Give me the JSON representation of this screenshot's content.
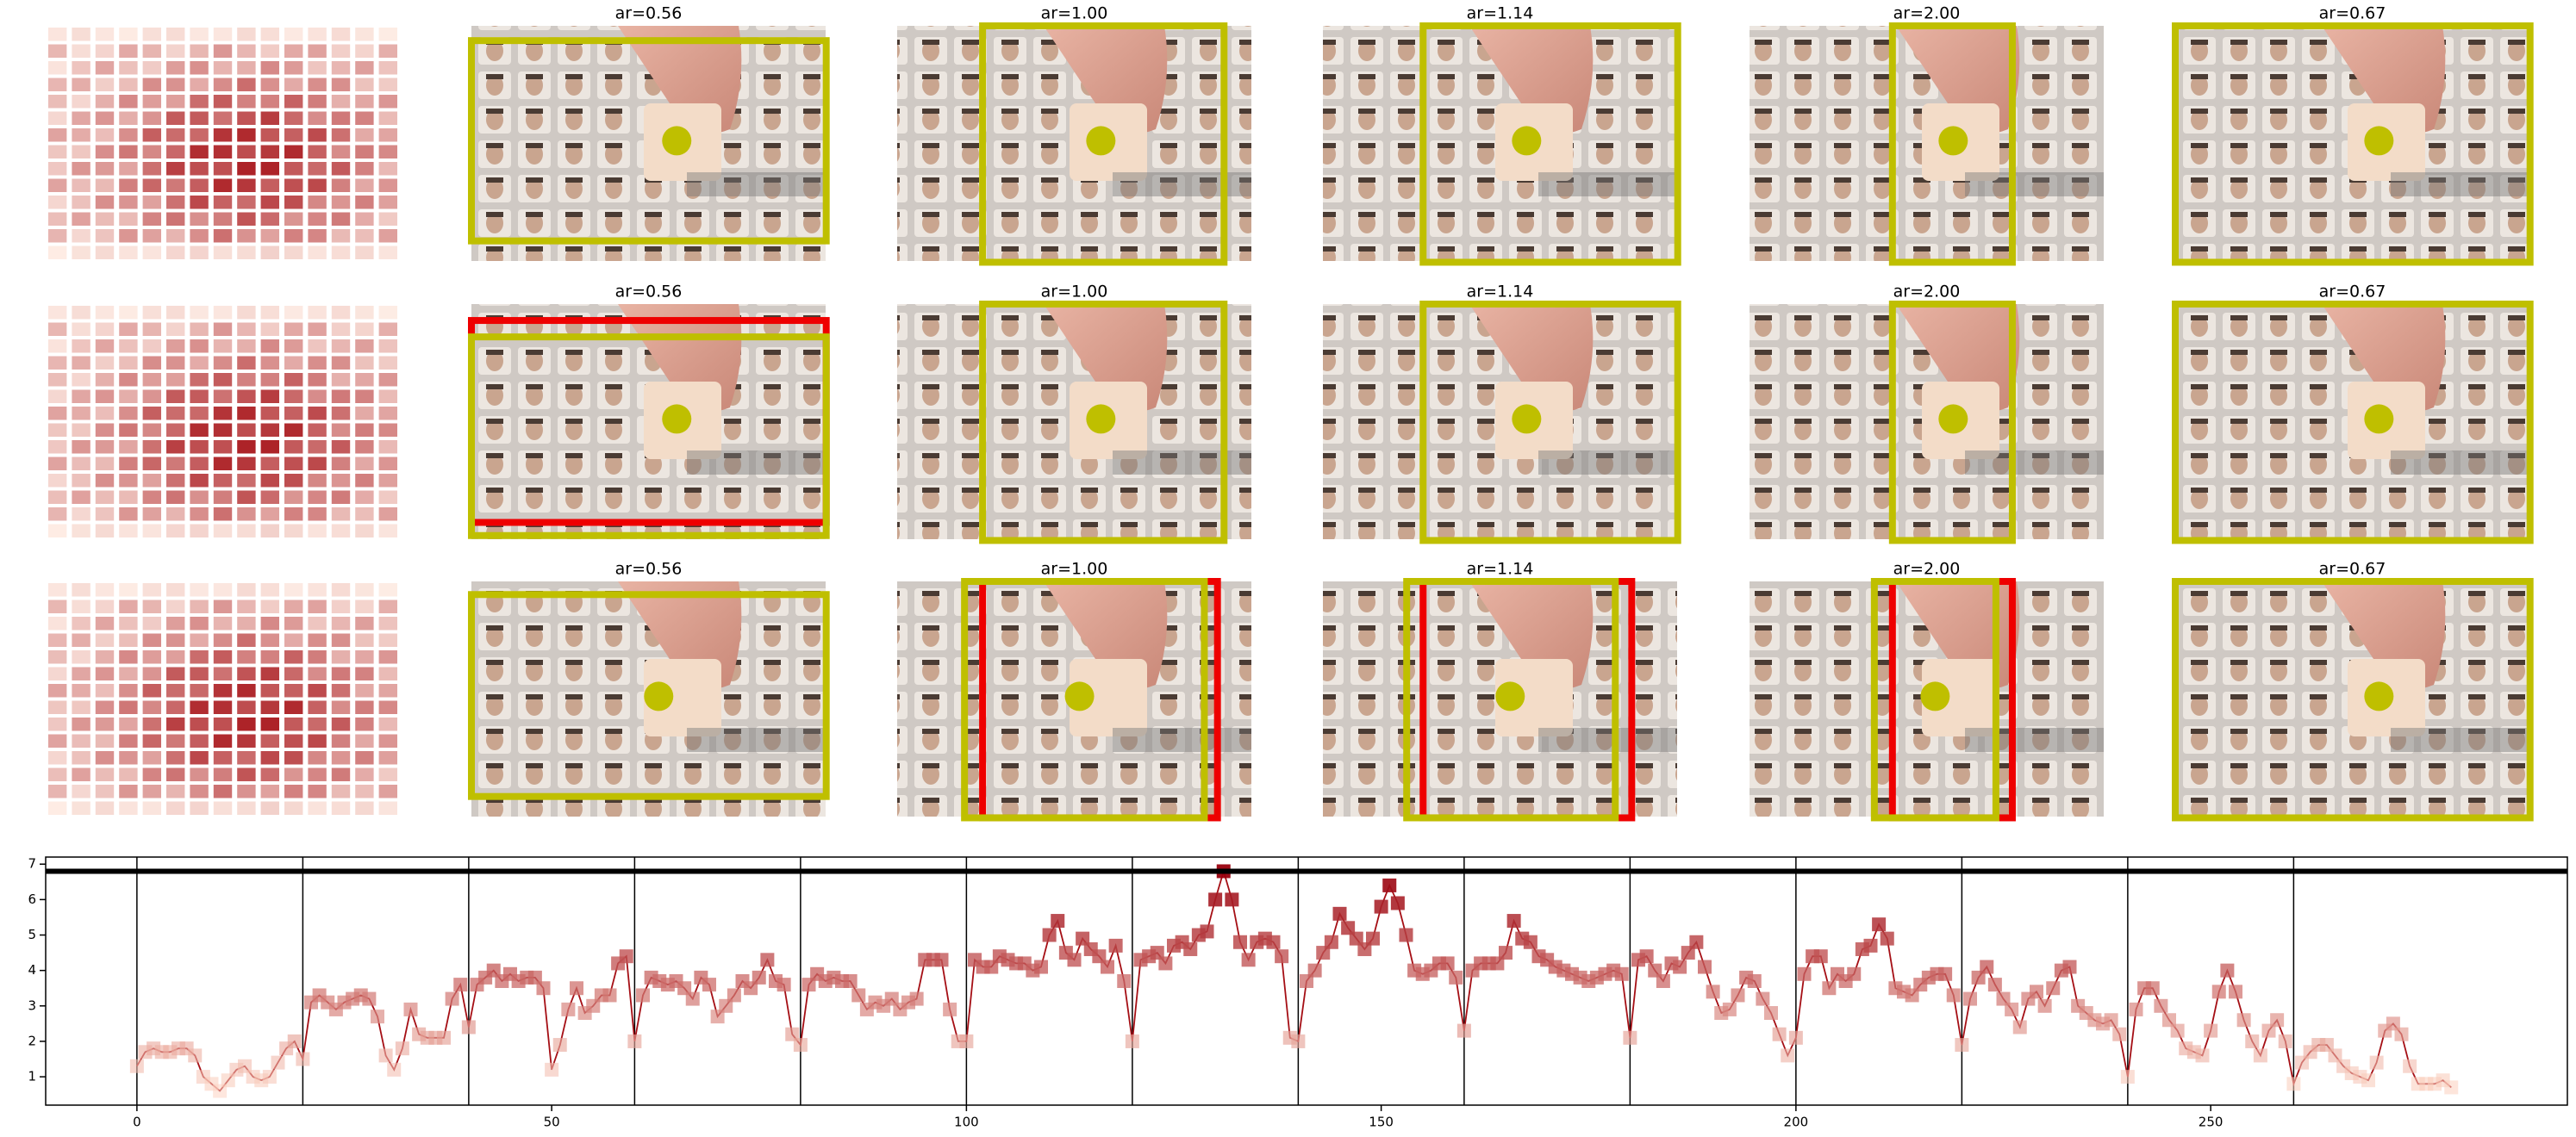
{
  "panels": {
    "rows": [
      {
        "titles": [
          "ar=0.56",
          "ar=1.00",
          "ar=1.14",
          "ar=2.00",
          "ar=0.67"
        ]
      },
      {
        "titles": [
          "ar=0.56",
          "ar=1.00",
          "ar=1.14",
          "ar=2.00",
          "ar=0.67"
        ]
      },
      {
        "titles": [
          "ar=0.56",
          "ar=1.00",
          "ar=1.14",
          "ar=2.00",
          "ar=0.67"
        ]
      }
    ]
  },
  "chart_data": {
    "type": "line",
    "x": [
      0,
      1,
      2,
      3,
      4,
      5,
      6,
      7,
      8,
      9,
      10,
      11,
      12,
      13,
      14,
      15,
      16,
      17,
      18,
      19,
      20,
      21,
      22,
      23,
      24,
      25,
      26,
      27,
      28,
      29,
      30,
      31,
      32,
      33,
      34,
      35,
      36,
      37,
      38,
      39,
      40,
      41,
      42,
      43,
      44,
      45,
      46,
      47,
      48,
      49,
      50,
      51,
      52,
      53,
      54,
      55,
      56,
      57,
      58,
      59,
      60,
      61,
      62,
      63,
      64,
      65,
      66,
      67,
      68,
      69,
      70,
      71,
      72,
      73,
      74,
      75,
      76,
      77,
      78,
      79,
      80,
      81,
      82,
      83,
      84,
      85,
      86,
      87,
      88,
      89,
      90,
      91,
      92,
      93,
      94,
      95,
      96,
      97,
      98,
      99,
      100,
      101,
      102,
      103,
      104,
      105,
      106,
      107,
      108,
      109,
      110,
      111,
      112,
      113,
      114,
      115,
      116,
      117,
      118,
      119,
      120,
      121,
      122,
      123,
      124,
      125,
      126,
      127,
      128,
      129,
      130,
      131,
      132,
      133,
      134,
      135,
      136,
      137,
      138,
      139,
      140,
      141,
      142,
      143,
      144,
      145,
      146,
      147,
      148,
      149,
      150,
      151,
      152,
      153,
      154,
      155,
      156,
      157,
      158,
      159,
      160,
      161,
      162,
      163,
      164,
      165,
      166,
      167,
      168,
      169,
      170,
      171,
      172,
      173,
      174,
      175,
      176,
      177,
      178,
      179,
      180,
      181,
      182,
      183,
      184,
      185,
      186,
      187,
      188,
      189,
      190,
      191,
      192,
      193,
      194,
      195,
      196,
      197,
      198,
      199,
      200,
      201,
      202,
      203,
      204,
      205,
      206,
      207,
      208,
      209,
      210,
      211,
      212,
      213,
      214,
      215,
      216,
      217,
      218,
      219,
      220,
      221,
      222,
      223,
      224,
      225,
      226,
      227,
      228,
      229,
      230,
      231,
      232,
      233,
      234,
      235,
      236,
      237,
      238,
      239,
      240,
      241,
      242,
      243,
      244,
      245,
      246,
      247,
      248,
      249,
      250,
      251,
      252,
      253,
      254,
      255,
      256,
      257,
      258,
      259,
      260,
      261,
      262,
      263,
      264,
      265,
      266,
      267,
      268,
      269,
      270,
      271,
      272,
      273,
      274,
      275,
      276,
      277,
      278,
      279
    ],
    "values": [
      1.3,
      1.7,
      1.8,
      1.7,
      1.7,
      1.8,
      1.8,
      1.6,
      1.0,
      0.8,
      0.6,
      0.9,
      1.2,
      1.3,
      1.0,
      0.9,
      1.0,
      1.4,
      1.8,
      2.0,
      1.5,
      3.1,
      3.3,
      3.1,
      2.9,
      3.1,
      3.2,
      3.3,
      3.2,
      2.7,
      1.6,
      1.2,
      1.8,
      2.9,
      2.2,
      2.1,
      2.1,
      2.1,
      3.2,
      3.6,
      2.4,
      3.6,
      3.8,
      4.0,
      3.7,
      3.9,
      3.7,
      3.8,
      3.8,
      3.5,
      1.2,
      1.9,
      2.9,
      3.5,
      2.8,
      3.0,
      3.3,
      3.3,
      4.2,
      4.4,
      2.0,
      3.3,
      3.8,
      3.7,
      3.6,
      3.7,
      3.5,
      3.2,
      3.8,
      3.6,
      2.7,
      3.0,
      3.3,
      3.7,
      3.5,
      3.8,
      4.3,
      3.7,
      3.6,
      2.2,
      1.9,
      3.6,
      3.9,
      3.7,
      3.8,
      3.7,
      3.7,
      3.3,
      2.9,
      3.1,
      3.0,
      3.2,
      2.9,
      3.1,
      3.2,
      4.3,
      4.3,
      4.3,
      2.9,
      2.0,
      2.0,
      4.3,
      4.1,
      4.1,
      4.4,
      4.3,
      4.2,
      4.2,
      4.0,
      4.1,
      5.0,
      5.4,
      4.5,
      4.3,
      4.9,
      4.6,
      4.4,
      4.1,
      4.7,
      3.7,
      2.0,
      4.3,
      4.4,
      4.5,
      4.2,
      4.7,
      4.8,
      4.6,
      5.0,
      5.1,
      6.0,
      6.8,
      6.0,
      4.8,
      4.3,
      4.8,
      4.9,
      4.8,
      4.4,
      2.1,
      2.0,
      3.7,
      4.0,
      4.5,
      4.8,
      5.6,
      5.2,
      4.9,
      4.6,
      4.9,
      5.8,
      6.4,
      5.9,
      5.0,
      4.0,
      3.9,
      4.0,
      4.2,
      4.2,
      3.8,
      2.3,
      4.0,
      4.2,
      4.2,
      4.2,
      4.5,
      5.4,
      4.9,
      4.8,
      4.4,
      4.3,
      4.1,
      4.0,
      3.9,
      3.8,
      3.7,
      3.8,
      3.9,
      4.0,
      3.9,
      2.1,
      4.3,
      4.4,
      4.0,
      3.7,
      4.2,
      4.1,
      4.5,
      4.8,
      4.1,
      3.4,
      2.8,
      2.9,
      3.3,
      3.8,
      3.7,
      3.2,
      2.8,
      2.2,
      1.6,
      2.1,
      3.9,
      4.4,
      4.4,
      3.5,
      3.9,
      3.7,
      3.9,
      4.6,
      4.7,
      5.3,
      4.9,
      3.5,
      3.4,
      3.3,
      3.6,
      3.8,
      3.9,
      3.9,
      3.3,
      1.9,
      3.2,
      3.8,
      4.1,
      3.6,
      3.2,
      2.9,
      2.4,
      3.2,
      3.4,
      3.0,
      3.5,
      4.0,
      4.1,
      3.0,
      2.8,
      2.6,
      2.5,
      2.6,
      2.2,
      1.0,
      2.9,
      3.5,
      3.5,
      3.0,
      2.6,
      2.3,
      1.8,
      1.7,
      1.6,
      2.3,
      3.4,
      4.0,
      3.4,
      2.6,
      2.0,
      1.6,
      2.3,
      2.6,
      2.0,
      0.8,
      1.4,
      1.7,
      1.9,
      1.9,
      1.6,
      1.3,
      1.1,
      1.0,
      0.9,
      1.4,
      2.3,
      2.5,
      2.2,
      1.3,
      0.8,
      0.8,
      0.8,
      0.9,
      0.7
    ],
    "color": "#a50f15",
    "marker_colors": [
      "#fdd4c2",
      "#99000d"
    ],
    "xlim": [
      -11,
      293
    ],
    "ylim": [
      0.2,
      7.2
    ],
    "xticks": [
      0,
      50,
      100,
      150,
      200,
      250
    ],
    "yticks": [
      1,
      2,
      3,
      4,
      5,
      6,
      7
    ],
    "vlines": [
      0,
      20,
      40,
      60,
      80,
      100,
      120,
      140,
      160,
      180,
      200,
      220,
      240,
      260
    ],
    "hline": 6.8
  }
}
